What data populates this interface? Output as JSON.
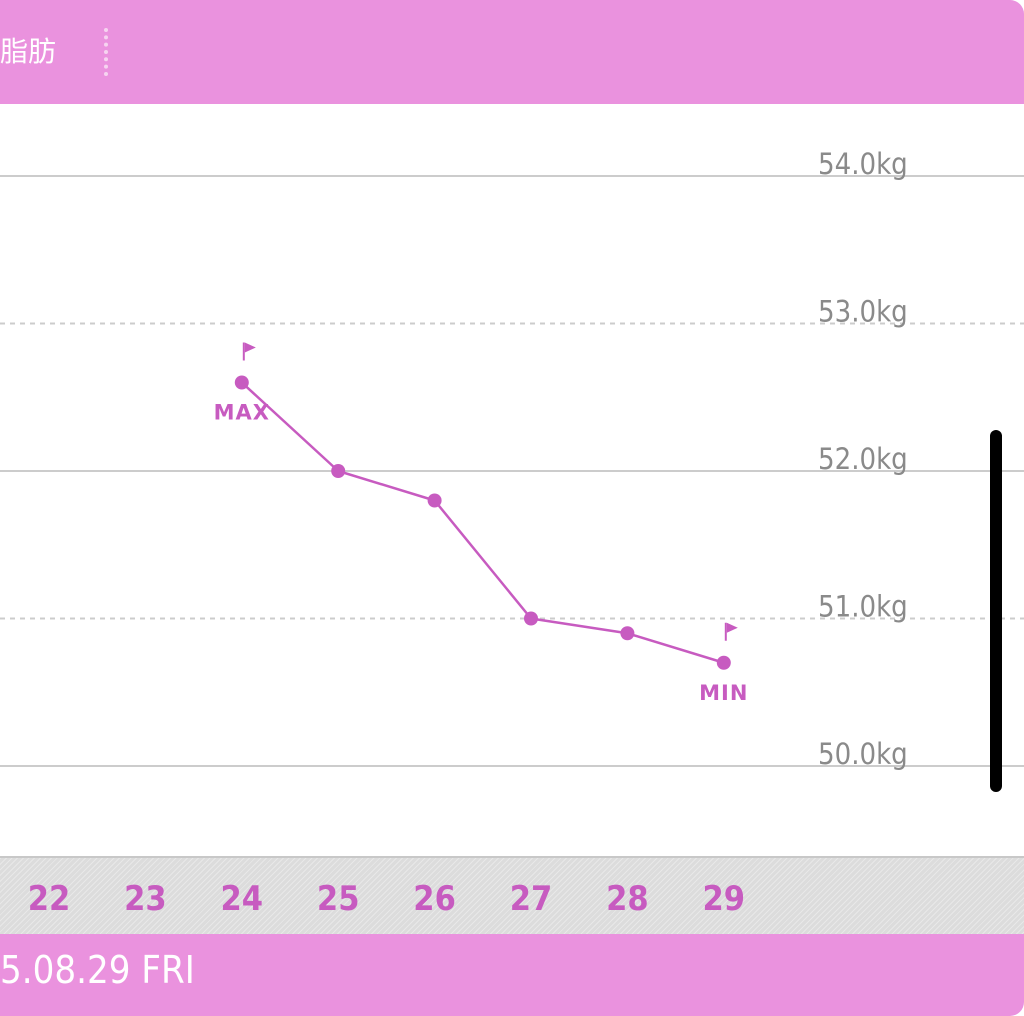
{
  "header": {
    "tab_label": "脂肪"
  },
  "footer": {
    "date_label": "5.08.29 FRI"
  },
  "colors": {
    "accent": "#ea92de",
    "series": "#c75bc0",
    "axis_text": "#8a8a8a",
    "grid": "#cccccc"
  },
  "chart_data": {
    "type": "line",
    "categories": [
      "22",
      "23",
      "24",
      "25",
      "26",
      "27",
      "28",
      "29"
    ],
    "series": [
      {
        "values": [
          null,
          null,
          52.6,
          52.0,
          51.8,
          51.0,
          50.9,
          50.7
        ]
      }
    ],
    "y_ticks": [
      "54.0kg",
      "53.0kg",
      "52.0kg",
      "51.0kg",
      "50.0kg"
    ],
    "ylim": [
      49.4,
      54.4
    ],
    "grid": true,
    "annotations": [
      {
        "label": "MAX",
        "category": "24",
        "value": 52.6,
        "icon": "flag-icon"
      },
      {
        "label": "MIN",
        "category": "29",
        "value": 50.7,
        "icon": "flag-icon"
      }
    ]
  }
}
